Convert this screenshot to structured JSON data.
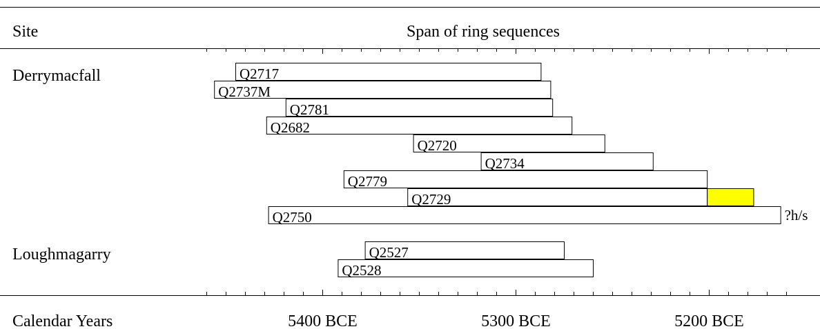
{
  "chart_data": {
    "type": "range-bar",
    "site_header": "Site",
    "title": "Span of ring sequences",
    "x_axis_label": "Calendar Years",
    "xlim": [
      5460,
      5160
    ],
    "xticks": [
      {
        "value": 5400,
        "label": "5400 BCE"
      },
      {
        "value": 5300,
        "label": "5300 BCE"
      },
      {
        "value": 5200,
        "label": "5200 BCE"
      }
    ],
    "minor_xticks": [
      5460,
      5450,
      5440,
      5430,
      5420,
      5410,
      5400,
      5390,
      5380,
      5370,
      5360,
      5350,
      5340,
      5330,
      5320,
      5310,
      5300,
      5290,
      5280,
      5270,
      5260,
      5250,
      5240,
      5230,
      5220,
      5210,
      5200,
      5190,
      5180,
      5170,
      5160
    ],
    "color": "#ffffff",
    "groups": [
      {
        "site": "Derrymacfall",
        "series": [
          {
            "name": "Q2717",
            "start": 5445,
            "end": 5287
          },
          {
            "name": "Q2737M",
            "start": 5456,
            "end": 5282
          },
          {
            "name": "Q2781",
            "start": 5419,
            "end": 5281
          },
          {
            "name": "Q2682",
            "start": 5429,
            "end": 5271
          },
          {
            "name": "Q2720",
            "start": 5353,
            "end": 5254
          },
          {
            "name": "Q2734",
            "start": 5318,
            "end": 5229
          },
          {
            "name": "Q2779",
            "start": 5389,
            "end": 5201
          },
          {
            "name": "Q2729",
            "start": 5356,
            "end": 5201,
            "extension": {
              "start": 5201,
              "end": 5177,
              "color": "#ffff00"
            }
          },
          {
            "name": "Q2750",
            "start": 5428,
            "end": 5163,
            "note": "?h/s"
          }
        ]
      },
      {
        "site": "Loughmagarry",
        "series": [
          {
            "name": "Q2527",
            "start": 5378,
            "end": 5275
          },
          {
            "name": "Q2528",
            "start": 5392,
            "end": 5260
          }
        ]
      }
    ]
  }
}
